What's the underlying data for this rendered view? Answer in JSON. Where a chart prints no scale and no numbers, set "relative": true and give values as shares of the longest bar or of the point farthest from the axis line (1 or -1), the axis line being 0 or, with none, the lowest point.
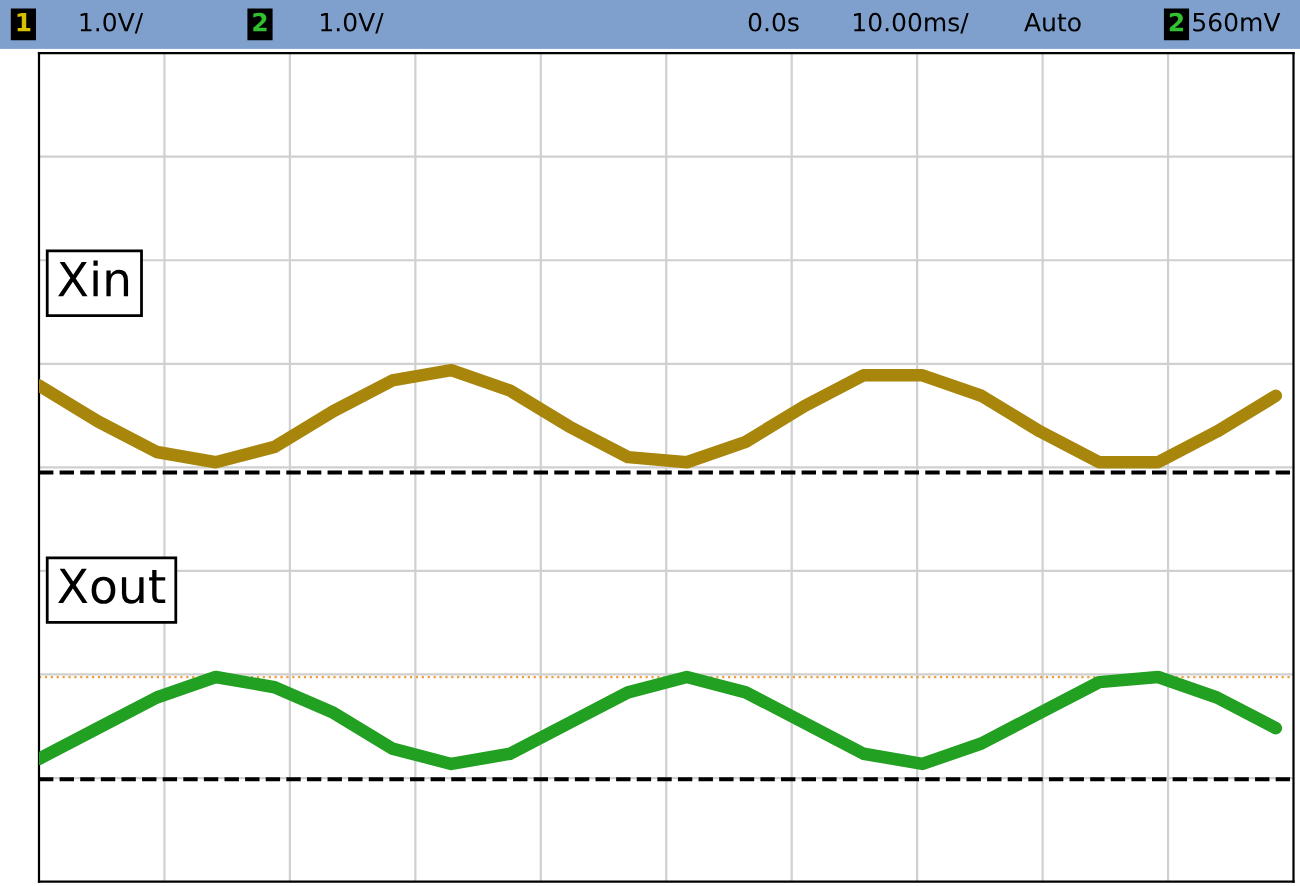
{
  "chart_data": {
    "type": "line",
    "relative": true,
    "grid": true,
    "legend": false,
    "marker": "none",
    "line_style": "solid",
    "categories": [
      null,
      null,
      null,
      null,
      null,
      null,
      null,
      null,
      null,
      null,
      null,
      null,
      null,
      null,
      null,
      null,
      null,
      null,
      null,
      null,
      null,
      null
    ],
    "series": [
      {
        "name": "Xin",
        "color": "#a8860c",
        "values": [
          0.97,
          0.9,
          0.84,
          0.82,
          0.85,
          0.92,
          0.98,
          1.0,
          0.96,
          0.89,
          0.83,
          0.82,
          0.86,
          0.93,
          0.99,
          0.99,
          0.95,
          0.88,
          0.82,
          0.82,
          0.88,
          0.95
        ]
      },
      {
        "name": "Xout",
        "color": "#22a022",
        "values": [
          0.24,
          0.3,
          0.36,
          0.4,
          0.38,
          0.33,
          0.26,
          0.23,
          0.25,
          0.31,
          0.37,
          0.4,
          0.37,
          0.31,
          0.25,
          0.23,
          0.27,
          0.33,
          0.39,
          0.4,
          0.36,
          0.3
        ]
      }
    ],
    "ref_lines": [
      {
        "axis": "y",
        "value": 0.8,
        "color": "#000000",
        "line_style": "dashed"
      },
      {
        "axis": "y",
        "value": 0.2,
        "color": "#000000",
        "line_style": "dashed"
      },
      {
        "axis": "y",
        "value": 0.4,
        "color": "#f0a040",
        "line_style": "dotted"
      }
    ],
    "annotations": [
      "1",
      "1.0V/",
      "2",
      "1.0V/",
      "0.0s",
      "10.00ms/",
      "Auto",
      "2",
      "560mV"
    ]
  }
}
